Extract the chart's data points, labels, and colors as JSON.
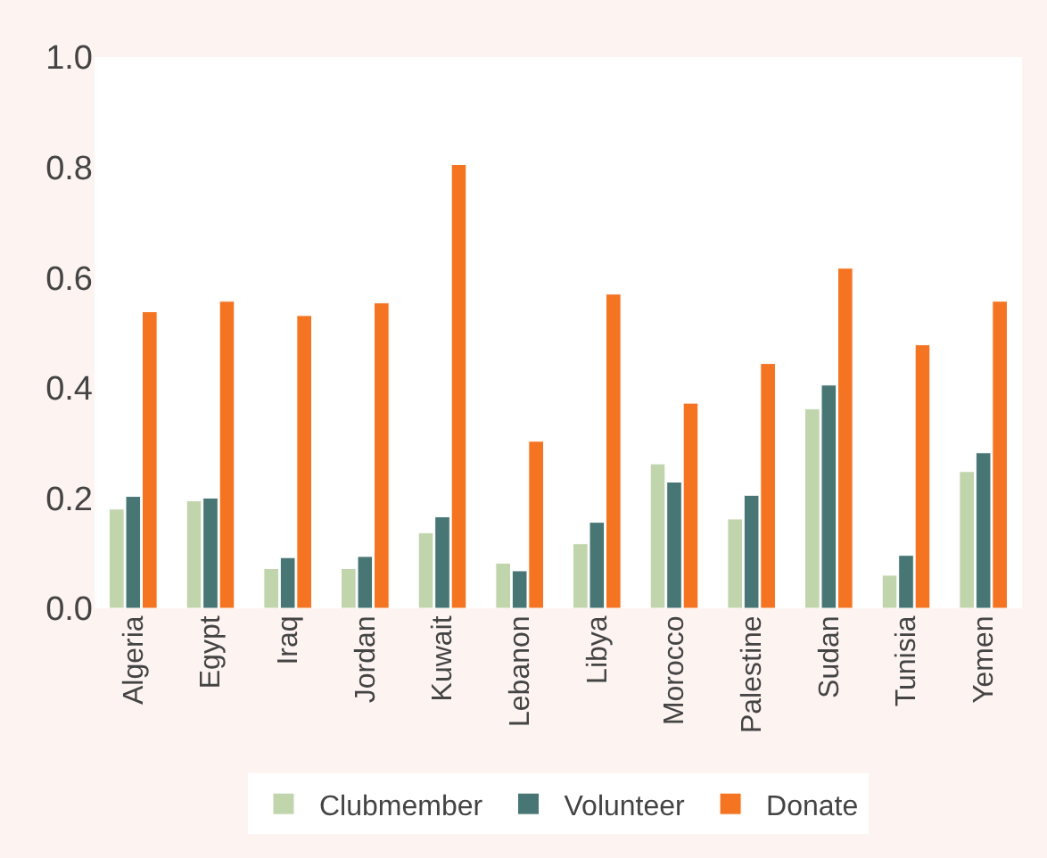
{
  "chart_data": {
    "type": "bar",
    "categories": [
      "Algeria",
      "Egypt",
      "Iraq",
      "Jordan",
      "Kuwait",
      "Lebanon",
      "Libya",
      "Morocco",
      "Palestine",
      "Sudan",
      "Tunisia",
      "Yemen"
    ],
    "series": [
      {
        "name": "Clubmember",
        "color": "#c1d5ac",
        "values": [
          0.18,
          0.195,
          0.072,
          0.072,
          0.137,
          0.082,
          0.117,
          0.262,
          0.162,
          0.362,
          0.06,
          0.248
        ]
      },
      {
        "name": "Volunteer",
        "color": "#477674",
        "values": [
          0.203,
          0.2,
          0.092,
          0.094,
          0.166,
          0.068,
          0.156,
          0.229,
          0.205,
          0.405,
          0.096,
          0.282
        ]
      },
      {
        "name": "Donate",
        "color": "#f47421",
        "values": [
          0.538,
          0.557,
          0.531,
          0.554,
          0.805,
          0.303,
          0.57,
          0.372,
          0.444,
          0.617,
          0.478,
          0.557
        ]
      }
    ],
    "ylim": [
      0,
      1.0
    ],
    "yticks": [
      {
        "value": 0,
        "label": "0.0"
      },
      {
        "value": 0.2,
        "label": "0.2"
      },
      {
        "value": 0.4,
        "label": "0.4"
      },
      {
        "value": 0.6,
        "label": "0.6"
      },
      {
        "value": 0.8,
        "label": "0.8"
      },
      {
        "value": 1.0,
        "label": "1.0"
      }
    ],
    "grid": false,
    "legend": "bottom"
  }
}
